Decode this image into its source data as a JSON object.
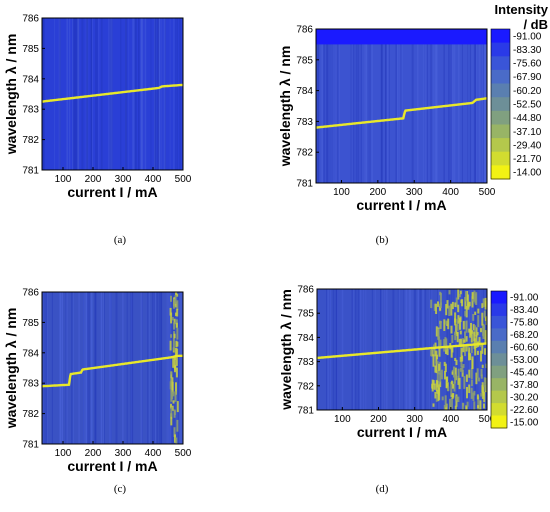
{
  "chart_data": [
    {
      "type": "heatmap",
      "caption": "(a)",
      "xlabel": "current I / mA",
      "ylabel": "wavelength λ / nm",
      "xlim": [
        30,
        500
      ],
      "ylim": [
        781,
        786
      ],
      "xticks": [
        100,
        200,
        300,
        400,
        500
      ],
      "yticks": [
        781,
        782,
        783,
        784,
        785,
        786
      ],
      "background_color": "#2a3fd6",
      "line_color": "#e8e82a",
      "line": [
        [
          30,
          783.25
        ],
        [
          420,
          783.7
        ],
        [
          430,
          783.75
        ],
        [
          500,
          783.8
        ]
      ]
    },
    {
      "type": "heatmap",
      "caption": "(b)",
      "xlabel": "current I / mA",
      "ylabel": "wavelength λ / nm",
      "xlim": [
        30,
        500
      ],
      "ylim": [
        781,
        786
      ],
      "xticks": [
        100,
        200,
        300,
        400,
        500
      ],
      "yticks": [
        781,
        782,
        783,
        784,
        785,
        786
      ],
      "background_color": "#3c53d0",
      "line_color": "#e8e82a",
      "line": [
        [
          30,
          782.8
        ],
        [
          270,
          783.1
        ],
        [
          275,
          783.35
        ],
        [
          460,
          783.6
        ],
        [
          470,
          783.7
        ],
        [
          500,
          783.75
        ]
      ],
      "colorbar": {
        "title": "Intensity / dB",
        "ticks": [
          "-91.00",
          "-83.30",
          "-75.60",
          "-67.90",
          "-60.20",
          "-52.50",
          "-44.80",
          "-37.10",
          "-29.40",
          "-21.70",
          "-14.00"
        ],
        "colors": [
          "#1a1aff",
          "#2a3ae8",
          "#3a55d8",
          "#4a6bc8",
          "#5a7fb0",
          "#6d8f98",
          "#80a080",
          "#98b466",
          "#b4c84c",
          "#d2dc30",
          "#f2f214"
        ]
      }
    },
    {
      "type": "heatmap",
      "caption": "(c)",
      "xlabel": "current I / mA",
      "ylabel": "wavelength λ / nm",
      "xlim": [
        30,
        500
      ],
      "ylim": [
        781,
        786
      ],
      "xticks": [
        100,
        200,
        300,
        400,
        500
      ],
      "yticks": [
        781,
        782,
        783,
        784,
        785,
        786
      ],
      "background_color": "#3a52c4",
      "line_color": "#e8e82a",
      "line": [
        [
          30,
          782.9
        ],
        [
          120,
          782.95
        ],
        [
          125,
          783.3
        ],
        [
          160,
          783.35
        ],
        [
          165,
          783.45
        ],
        [
          460,
          783.85
        ],
        [
          480,
          783.9
        ]
      ],
      "noise_band": [
        455,
        480
      ]
    },
    {
      "type": "heatmap",
      "caption": "(d)",
      "xlabel": "current I / mA",
      "ylabel": "wavelength λ / nm",
      "xlim": [
        30,
        500
      ],
      "ylim": [
        781,
        786
      ],
      "xticks": [
        100,
        200,
        300,
        400,
        500
      ],
      "yticks": [
        781,
        782,
        783,
        784,
        785,
        786
      ],
      "background_color": "#3a52c8",
      "line_color": "#e8e82a",
      "line": [
        [
          30,
          783.15
        ],
        [
          340,
          783.55
        ],
        [
          500,
          783.75
        ]
      ],
      "noise_band": [
        340,
        500
      ],
      "colorbar": {
        "title": "",
        "ticks": [
          "-91.00",
          "-83.40",
          "-75.80",
          "-68.20",
          "-60.60",
          "-53.00",
          "-45.40",
          "-37.80",
          "-30.20",
          "-22.60",
          "-15.00"
        ],
        "colors": [
          "#1a1aff",
          "#2a3ae8",
          "#3a55d8",
          "#4a6bc8",
          "#5a7fb0",
          "#6d8f98",
          "#80a080",
          "#98b466",
          "#b4c84c",
          "#d2dc30",
          "#f2f214"
        ]
      }
    }
  ]
}
